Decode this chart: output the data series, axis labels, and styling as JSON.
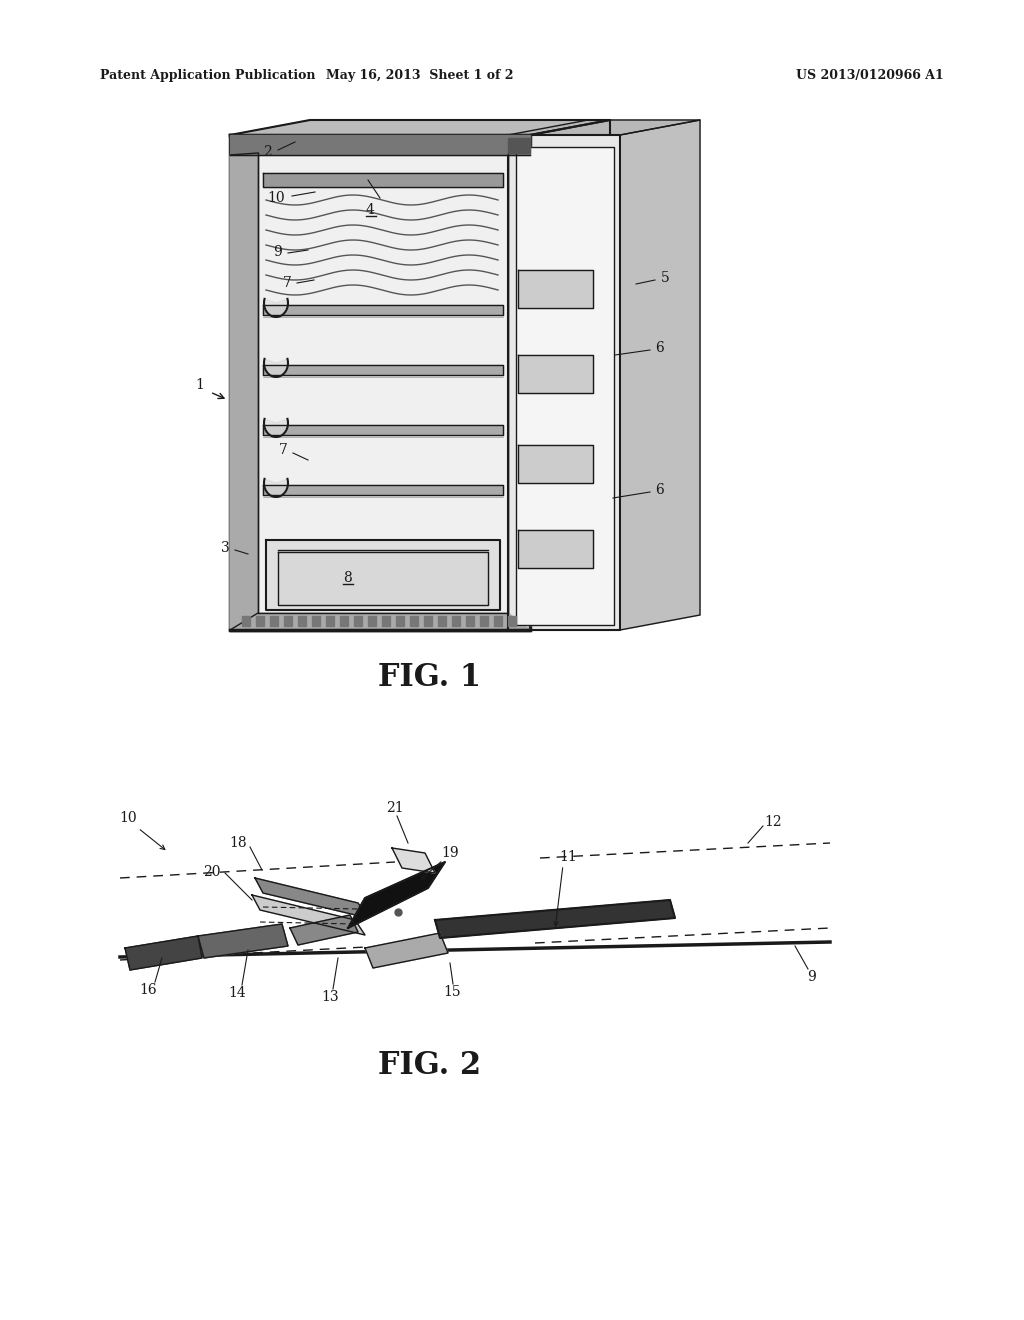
{
  "bg_color": "#ffffff",
  "header_left": "Patent Application Publication",
  "header_mid": "May 16, 2013  Sheet 1 of 2",
  "header_right": "US 2013/0120966 A1",
  "fig1_label": "FIG. 1",
  "fig2_label": "FIG. 2",
  "line_color": "#1a1a1a"
}
